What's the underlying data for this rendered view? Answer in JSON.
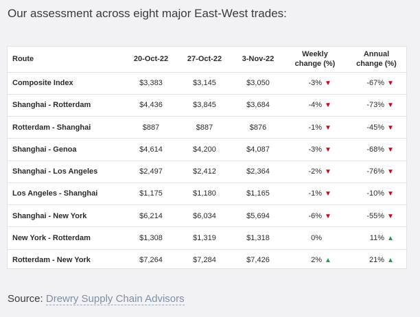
{
  "heading": "Our assessment across eight major East-West trades:",
  "table": {
    "headers": {
      "route": "Route",
      "d1": "20-Oct-22",
      "d2": "27-Oct-22",
      "d3": "3-Nov-22",
      "weekly_1": "Weekly",
      "weekly_2": "change (%)",
      "annual_1": "Annual",
      "annual_2": "change (%)"
    },
    "rows": [
      {
        "route": "Composite Index",
        "d1": "$3,383",
        "d2": "$3,145",
        "d3": "$3,050",
        "weekly": "-3%",
        "weekly_dir": "down",
        "annual": "-67%",
        "annual_dir": "down"
      },
      {
        "route": "Shanghai - Rotterdam",
        "d1": "$4,436",
        "d2": "$3,845",
        "d3": "$3,684",
        "weekly": "-4%",
        "weekly_dir": "down",
        "annual": "-73%",
        "annual_dir": "down"
      },
      {
        "route": "Rotterdam - Shanghai",
        "d1": "$887",
        "d2": "$887",
        "d3": "$876",
        "weekly": "-1%",
        "weekly_dir": "down",
        "annual": "-45%",
        "annual_dir": "down"
      },
      {
        "route": "Shanghai - Genoa",
        "d1": "$4,614",
        "d2": "$4,200",
        "d3": "$4,087",
        "weekly": "-3%",
        "weekly_dir": "down",
        "annual": "-68%",
        "annual_dir": "down"
      },
      {
        "route": "Shanghai - Los Angeles",
        "d1": "$2,497",
        "d2": "$2,412",
        "d3": "$2,364",
        "weekly": "-2%",
        "weekly_dir": "down",
        "annual": "-76%",
        "annual_dir": "down"
      },
      {
        "route": "Los Angeles - Shanghai",
        "d1": "$1,175",
        "d2": "$1,180",
        "d3": "$1,165",
        "weekly": "-1%",
        "weekly_dir": "down",
        "annual": "-10%",
        "annual_dir": "down"
      },
      {
        "route": "Shanghai - New York",
        "d1": "$6,214",
        "d2": "$6,034",
        "d3": "$5,694",
        "weekly": "-6%",
        "weekly_dir": "down",
        "annual": "-55%",
        "annual_dir": "down"
      },
      {
        "route": "New York - Rotterdam",
        "d1": "$1,308",
        "d2": "$1,319",
        "d3": "$1,318",
        "weekly": "0%",
        "weekly_dir": "none",
        "annual": "11%",
        "annual_dir": "up"
      },
      {
        "route": "Rotterdam - New York",
        "d1": "$7,264",
        "d2": "$7,284",
        "d3": "$7,426",
        "weekly": "2%",
        "weekly_dir": "up",
        "annual": "21%",
        "annual_dir": "up"
      }
    ]
  },
  "source": {
    "label": "Source:",
    "link": "Drewry Supply Chain Advisors"
  },
  "colors": {
    "down": "#d0021b",
    "up": "#1e9e3c"
  },
  "icons": {
    "down": "down-triangle-icon",
    "up": "up-triangle-icon"
  }
}
